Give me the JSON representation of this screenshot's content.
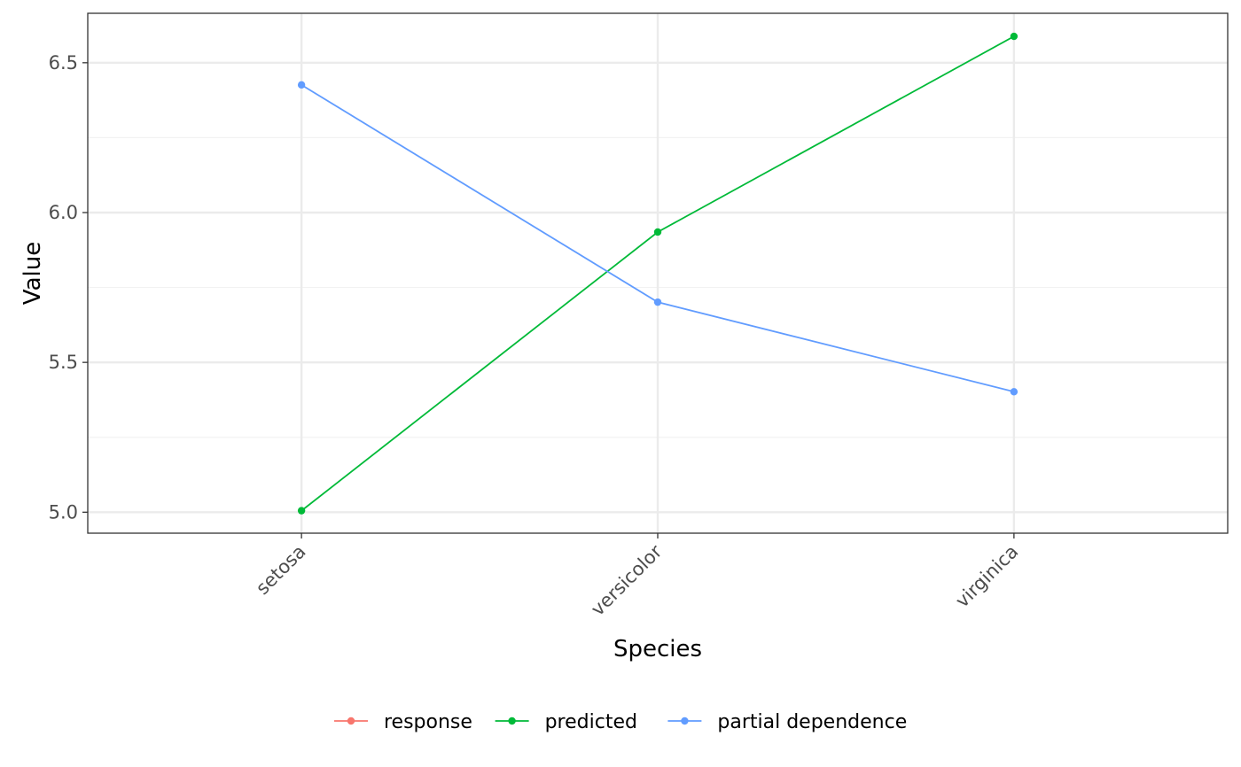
{
  "chart_data": {
    "type": "line",
    "categories": [
      "setosa",
      "versicolor",
      "virginica"
    ],
    "series": [
      {
        "name": "response",
        "color": "#F8766D",
        "values": [
          null,
          null,
          null
        ]
      },
      {
        "name": "predicted",
        "color": "#00BA38",
        "values": [
          5.005,
          5.935,
          6.588
        ]
      },
      {
        "name": "partial dependence",
        "color": "#619CFF",
        "values": [
          6.426,
          5.701,
          5.402
        ]
      }
    ],
    "xlabel": "Species",
    "ylabel": "Value",
    "yticks": [
      "5.0",
      "5.5",
      "6.0",
      "6.5"
    ],
    "ylim": [
      4.93,
      6.665
    ],
    "grid": true,
    "legend_position": "bottom"
  }
}
